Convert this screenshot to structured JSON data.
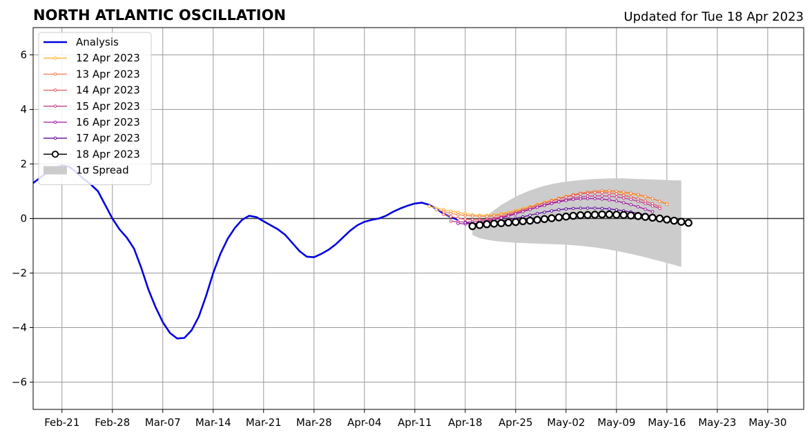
{
  "chart_data": {
    "type": "line",
    "title": "NORTH ATLANTIC OSCILLATION",
    "subtitle": "Updated for Tue 18 Apr 2023",
    "xlabel": "",
    "ylabel": "",
    "x_range": [
      "2023-02-17",
      "2023-06-04"
    ],
    "ylim": [
      -7,
      7
    ],
    "y_ticks": [
      -6,
      -4,
      -2,
      0,
      2,
      4,
      6
    ],
    "y_tick_labels": [
      "−6",
      "−4",
      "−2",
      "0",
      "2",
      "4",
      "6"
    ],
    "x_ticks": [
      "2023-02-21",
      "2023-02-28",
      "2023-03-07",
      "2023-03-14",
      "2023-03-21",
      "2023-03-28",
      "2023-04-04",
      "2023-04-11",
      "2023-04-18",
      "2023-04-25",
      "2023-05-02",
      "2023-05-09",
      "2023-05-16",
      "2023-05-23",
      "2023-05-30"
    ],
    "x_tick_labels": [
      "Feb-21",
      "Feb-28",
      "Mar-07",
      "Mar-14",
      "Mar-21",
      "Mar-28",
      "Apr-04",
      "Apr-11",
      "Apr-18",
      "Apr-25",
      "May-02",
      "May-09",
      "May-16",
      "May-23",
      "May-30"
    ],
    "grid": true,
    "legend_position": "top-left",
    "analysis": {
      "name": "Analysis",
      "color": "#0000e0",
      "start": "2023-02-17",
      "values": [
        1.3,
        1.5,
        1.7,
        1.85,
        1.95,
        1.9,
        1.7,
        1.45,
        1.25,
        1.0,
        0.5,
        0.0,
        -0.4,
        -0.7,
        -1.1,
        -1.8,
        -2.6,
        -3.25,
        -3.8,
        -4.2,
        -4.4,
        -4.38,
        -4.1,
        -3.6,
        -2.85,
        -2.0,
        -1.3,
        -0.75,
        -0.35,
        -0.05,
        0.1,
        0.05,
        -0.1,
        -0.25,
        -0.4,
        -0.6,
        -0.9,
        -1.2,
        -1.4,
        -1.42,
        -1.3,
        -1.15,
        -0.95,
        -0.7,
        -0.45,
        -0.25,
        -0.12,
        -0.05,
        0.0,
        0.1,
        0.25,
        0.37,
        0.47,
        0.55,
        0.58,
        0.5,
        0.35,
        0.18,
        0.05,
        -0.05
      ]
    },
    "spread": {
      "name": "1σ Spread",
      "color": "#cccccc",
      "start": "2023-04-19",
      "upper": [
        -0.2,
        -0.1,
        0.1,
        0.3,
        0.5,
        0.65,
        0.8,
        0.92,
        1.03,
        1.12,
        1.2,
        1.26,
        1.31,
        1.35,
        1.38,
        1.41,
        1.43,
        1.45,
        1.46,
        1.47,
        1.47,
        1.47,
        1.46,
        1.45,
        1.44,
        1.43,
        1.42,
        1.41,
        1.4,
        1.4
      ],
      "lower": [
        -0.6,
        -0.72,
        -0.78,
        -0.82,
        -0.85,
        -0.87,
        -0.89,
        -0.9,
        -0.91,
        -0.92,
        -0.93,
        -0.94,
        -0.95,
        -0.96,
        -0.98,
        -1.0,
        -1.03,
        -1.06,
        -1.1,
        -1.14,
        -1.19,
        -1.24,
        -1.3,
        -1.36,
        -1.42,
        -1.49,
        -1.56,
        -1.63,
        -1.7,
        -1.78
      ]
    },
    "series": [
      {
        "name": "12 Apr 2023",
        "color": "#fdb32f",
        "start": "2023-04-13",
        "values": [
          0.45,
          0.38,
          0.32,
          0.27,
          0.22,
          0.18,
          0.14,
          0.12,
          0.12,
          0.14,
          0.18,
          0.23,
          0.3,
          0.37,
          0.44,
          0.52,
          0.6,
          0.68,
          0.75,
          0.82,
          0.88,
          0.93,
          0.96,
          0.98,
          0.99,
          0.99,
          0.97,
          0.94,
          0.9,
          0.85,
          0.79,
          0.72,
          0.64,
          0.55
        ]
      },
      {
        "name": "13 Apr 2023",
        "color": "#f07f4a",
        "start": "2023-04-14",
        "values": [
          0.32,
          0.25,
          0.19,
          0.14,
          0.11,
          0.09,
          0.08,
          0.08,
          0.1,
          0.14,
          0.19,
          0.26,
          0.33,
          0.41,
          0.49,
          0.57,
          0.65,
          0.73,
          0.8,
          0.87,
          0.93,
          0.97,
          1.0,
          1.02,
          1.02,
          1.0,
          0.97,
          0.93,
          0.88,
          0.81,
          0.73,
          0.63,
          0.52
        ]
      },
      {
        "name": "14 Apr 2023",
        "color": "#e05a62",
        "start": "2023-04-15",
        "values": [
          0.15,
          0.07,
          0.01,
          -0.03,
          -0.05,
          -0.05,
          -0.03,
          0.01,
          0.07,
          0.14,
          0.22,
          0.3,
          0.39,
          0.48,
          0.56,
          0.64,
          0.72,
          0.79,
          0.85,
          0.9,
          0.93,
          0.95,
          0.95,
          0.93,
          0.9,
          0.85,
          0.79,
          0.72,
          0.64,
          0.54,
          0.43
        ]
      },
      {
        "name": "15 Apr 2023",
        "color": "#c23e8a",
        "start": "2023-04-16",
        "values": [
          -0.1,
          -0.12,
          -0.13,
          -0.12,
          -0.1,
          -0.07,
          -0.02,
          0.04,
          0.11,
          0.18,
          0.26,
          0.34,
          0.42,
          0.5,
          0.57,
          0.64,
          0.7,
          0.75,
          0.79,
          0.82,
          0.83,
          0.83,
          0.82,
          0.79,
          0.75,
          0.7,
          0.63,
          0.55,
          0.46,
          0.37
        ]
      },
      {
        "name": "16 Apr 2023",
        "color": "#9c179e",
        "start": "2023-04-17",
        "values": [
          -0.18,
          -0.2,
          -0.19,
          -0.16,
          -0.11,
          -0.05,
          0.02,
          0.09,
          0.17,
          0.25,
          0.33,
          0.41,
          0.48,
          0.55,
          0.61,
          0.66,
          0.7,
          0.72,
          0.73,
          0.73,
          0.71,
          0.68,
          0.64,
          0.58,
          0.51,
          0.43,
          0.34,
          0.25
        ]
      },
      {
        "name": "17 Apr 2023",
        "color": "#5c089e",
        "start": "2023-04-18",
        "values": [
          -0.15,
          -0.18,
          -0.18,
          -0.16,
          -0.13,
          -0.09,
          -0.04,
          0.01,
          0.06,
          0.12,
          0.18,
          0.23,
          0.28,
          0.32,
          0.35,
          0.37,
          0.38,
          0.38,
          0.38,
          0.37,
          0.35,
          0.32,
          0.28,
          0.24,
          0.19,
          0.13,
          0.07,
          0.01,
          -0.05
        ]
      },
      {
        "name": "18 Apr 2023",
        "color": "#000000",
        "start": "2023-04-19",
        "open_markers": true,
        "values": [
          -0.28,
          -0.24,
          -0.21,
          -0.19,
          -0.17,
          -0.15,
          -0.13,
          -0.1,
          -0.08,
          -0.05,
          -0.02,
          0.01,
          0.04,
          0.07,
          0.1,
          0.12,
          0.13,
          0.14,
          0.15,
          0.15,
          0.14,
          0.13,
          0.11,
          0.09,
          0.06,
          0.03,
          0.0,
          -0.04,
          -0.08,
          -0.12,
          -0.16
        ]
      }
    ]
  }
}
